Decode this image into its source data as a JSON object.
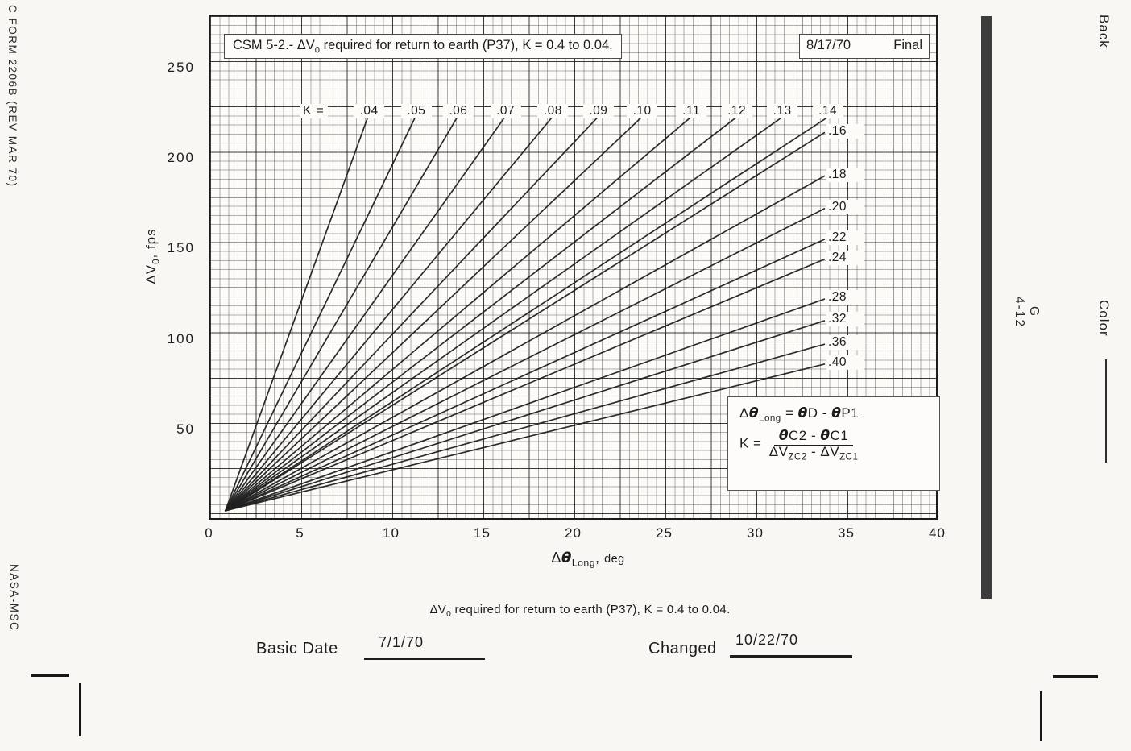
{
  "margins": {
    "form_number": "C FORM 2206B (REV MAR 70)",
    "agency": "NASA-MSC",
    "back_label": "Back",
    "color_label": "Color",
    "page_ref": "G\n4-12"
  },
  "header": {
    "title_pre": "CSM 5-2.- ΔV",
    "title_sub": "0",
    "title_post": " required for return to earth (P37), K = 0.4 to 0.04.",
    "date": "8/17/70",
    "status": "Final"
  },
  "axes": {
    "k_prefix": "K =",
    "y_pre": "ΔV",
    "y_sub": "0",
    "y_post": ", fps",
    "x_pre": "Δ",
    "x_theta": "θ",
    "x_sub": "Long",
    "x_comma": ", ",
    "x_unit": "deg"
  },
  "equation_box": {
    "l1_p1": "Δ",
    "l1_theta1": "θ",
    "l1_sub1": "Long",
    "l1_eq": " = ",
    "l1_theta2": "θ",
    "l1_p2": "D - ",
    "l1_theta3": "θ",
    "l1_p3": "P1",
    "l2_lhs": "K = ",
    "num_theta1": "θ",
    "num_p1": "C2 - ",
    "num_theta2": "θ",
    "num_p2": "C1",
    "den_p1": "ΔV",
    "den_sub1": "ZC2",
    "den_p2": " - ",
    "den_p3": "ΔV",
    "den_sub2": "ZC1"
  },
  "footer": {
    "caption_pre": "ΔV",
    "caption_sub": "0",
    "caption_post": " required for return to earth (P37), K = 0.4 to 0.04.",
    "basic_date_label": "Basic Date",
    "basic_date_value": "7/1/70",
    "changed_label": "Changed",
    "changed_value": "10/22/70"
  },
  "chart_data": {
    "type": "line",
    "title": "CSM 5-2.- ΔV0 required for return to earth (P37), K = 0.4 to 0.04.",
    "header_date": "8/17/70",
    "header_status": "Final",
    "xlabel": "Δθ_Long, deg",
    "ylabel": "ΔV0, fps",
    "xlim": [
      0,
      40
    ],
    "ylim": [
      0,
      280
    ],
    "x_ticks": [
      0,
      5,
      10,
      15,
      20,
      25,
      30,
      35,
      40
    ],
    "y_ticks": [
      50,
      100,
      150,
      200,
      250
    ],
    "grid": "fine graph paper, 0.5 deg x 5 fps minor cells, heavy line every 5 cells",
    "legend_note": "K =",
    "fan_origin_deg_fps": [
      0.9,
      5
    ],
    "series": [
      {
        "k": ".04",
        "end_deg_fps": [
          8.7,
          222
        ],
        "label_side": "top"
      },
      {
        "k": ".05",
        "end_deg_fps": [
          11.3,
          222
        ],
        "label_side": "top"
      },
      {
        "k": ".06",
        "end_deg_fps": [
          13.6,
          222
        ],
        "label_side": "top"
      },
      {
        "k": ".07",
        "end_deg_fps": [
          16.2,
          222
        ],
        "label_side": "top"
      },
      {
        "k": ".08",
        "end_deg_fps": [
          18.8,
          222
        ],
        "label_side": "top"
      },
      {
        "k": ".09",
        "end_deg_fps": [
          21.3,
          222
        ],
        "label_side": "top"
      },
      {
        "k": ".10",
        "end_deg_fps": [
          23.7,
          222
        ],
        "label_side": "top"
      },
      {
        "k": ".11",
        "end_deg_fps": [
          26.4,
          222
        ],
        "label_side": "top"
      },
      {
        "k": ".12",
        "end_deg_fps": [
          28.9,
          222
        ],
        "label_side": "top"
      },
      {
        "k": ".13",
        "end_deg_fps": [
          31.4,
          222
        ],
        "label_side": "top"
      },
      {
        "k": ".14",
        "end_deg_fps": [
          33.9,
          222
        ],
        "label_side": "top"
      },
      {
        "k": ".16",
        "end_deg_fps": [
          33.8,
          214
        ],
        "label_side": "right"
      },
      {
        "k": ".18",
        "end_deg_fps": [
          33.8,
          190
        ],
        "label_side": "right"
      },
      {
        "k": ".20",
        "end_deg_fps": [
          33.8,
          172
        ],
        "label_side": "right"
      },
      {
        "k": ".22",
        "end_deg_fps": [
          33.8,
          155
        ],
        "label_side": "right"
      },
      {
        "k": ".24",
        "end_deg_fps": [
          33.8,
          144
        ],
        "label_side": "right"
      },
      {
        "k": ".28",
        "end_deg_fps": [
          33.8,
          122
        ],
        "label_side": "right"
      },
      {
        "k": ".32",
        "end_deg_fps": [
          33.8,
          110
        ],
        "label_side": "right"
      },
      {
        "k": ".36",
        "end_deg_fps": [
          33.8,
          97
        ],
        "label_side": "right"
      },
      {
        "k": ".40",
        "end_deg_fps": [
          33.8,
          86
        ],
        "label_side": "right"
      }
    ],
    "annotations": [
      "Δθ_Long = θD - θP1",
      "K = (θC2 - θC1) / (ΔV_ZC2 - ΔV_ZC1)"
    ]
  }
}
